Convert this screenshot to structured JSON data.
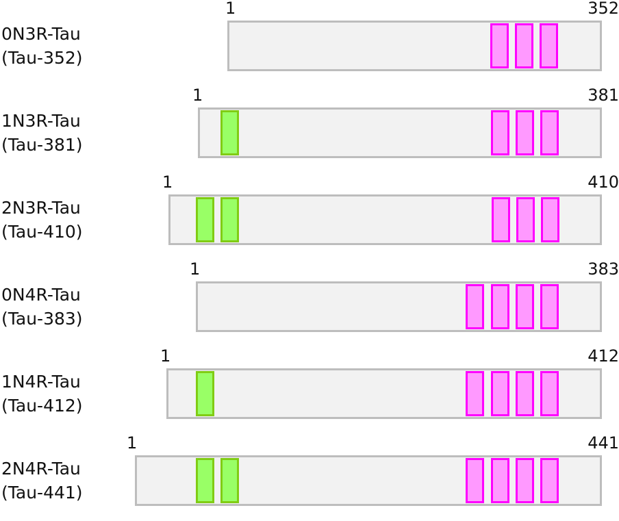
{
  "isoforms": [
    {
      "name": "0N3R-Tau",
      "alias": "(Tau-352)",
      "start": "1",
      "end": "352",
      "n_inserts": 0,
      "repeats": 3
    },
    {
      "name": "1N3R-Tau",
      "alias": "(Tau-381)",
      "start": "1",
      "end": "381",
      "n_inserts": 1,
      "repeats": 3
    },
    {
      "name": "2N3R-Tau",
      "alias": "(Tau-410)",
      "start": "1",
      "end": "410",
      "n_inserts": 2,
      "repeats": 3
    },
    {
      "name": "0N4R-Tau",
      "alias": "(Tau-383)",
      "start": "1",
      "end": "383",
      "n_inserts": 0,
      "repeats": 4
    },
    {
      "name": "1N4R-Tau",
      "alias": "(Tau-412)",
      "start": "1",
      "end": "412",
      "n_inserts": 1,
      "repeats": 4
    },
    {
      "name": "2N4R-Tau",
      "alias": "(Tau-441)",
      "start": "1",
      "end": "441",
      "n_inserts": 2,
      "repeats": 4
    }
  ],
  "colors": {
    "bar_fill": "#f2f2f2",
    "bar_border": "#bdbdbd",
    "n_insert_fill": "#99ff66",
    "n_insert_border": "#80cc14",
    "repeat_fill": "#ff99ff",
    "repeat_border": "#ff00ff"
  }
}
